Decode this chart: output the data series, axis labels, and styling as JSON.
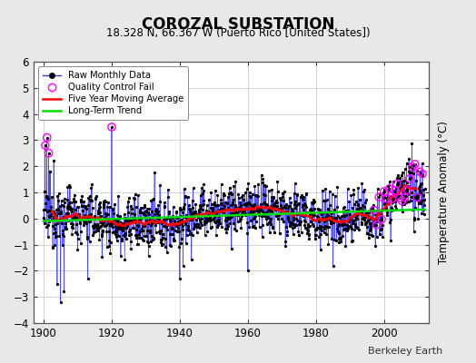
{
  "title": "COROZAL SUBSTATION",
  "subtitle": "18.328 N, 66.367 W (Puerto Rico [United States])",
  "ylabel": "Temperature Anomaly (°C)",
  "watermark": "Berkeley Earth",
  "ylim": [
    -4,
    6
  ],
  "xlim": [
    1897,
    2013
  ],
  "yticks": [
    -4,
    -3,
    -2,
    -1,
    0,
    1,
    2,
    3,
    4,
    5,
    6
  ],
  "xticks": [
    1900,
    1920,
    1940,
    1960,
    1980,
    2000
  ],
  "bg_color": "#e8e8e8",
  "plot_bg": "#ffffff",
  "raw_line_color": "#3333ff",
  "raw_marker_color": "#000000",
  "qc_color": "#ff00ff",
  "moving_avg_color": "#ff0000",
  "trend_color": "#00dd00",
  "grid_color": "#cccccc",
  "seed": 12345,
  "start_year": 1900,
  "end_year": 2012
}
